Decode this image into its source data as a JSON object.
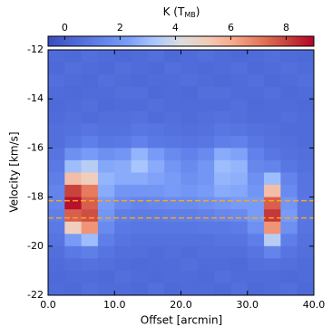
{
  "chart_data": {
    "type": "heatmap",
    "colormap": "coolwarm",
    "colorbar_label": {
      "text": "K (T",
      "sub": "MB",
      "end": ")"
    },
    "clim": [
      -0.6,
      9.0
    ],
    "cticks": [
      0,
      2,
      4,
      6,
      8
    ],
    "x_label": "Offset [arcmin]",
    "y_label": "Velocity [km/s]",
    "xlim": [
      0,
      40
    ],
    "ylim": [
      -22,
      -12
    ],
    "xticks": [
      {
        "value": 0,
        "label": "0.0"
      },
      {
        "value": 10,
        "label": "10.0"
      },
      {
        "value": 20,
        "label": "20.0"
      },
      {
        "value": 30,
        "label": "30.0"
      },
      {
        "value": 40,
        "label": "40.0"
      }
    ],
    "yticks": [
      -12,
      -14,
      -16,
      -18,
      -20,
      -22
    ],
    "x": [
      1.25,
      3.75,
      6.25,
      8.75,
      11.25,
      13.75,
      16.25,
      18.75,
      21.25,
      23.75,
      26.25,
      28.75,
      31.25,
      33.75,
      36.25,
      38.75
    ],
    "y": [
      -12.25,
      -12.75,
      -13.25,
      -13.75,
      -14.25,
      -14.75,
      -15.25,
      -15.75,
      -16.25,
      -16.75,
      -17.25,
      -17.75,
      -18.25,
      -18.75,
      -19.25,
      -19.75,
      -20.25,
      -20.75,
      -21.25,
      -21.75
    ],
    "values": [
      [
        0.5,
        0.4,
        0.6,
        0.5,
        0.4,
        0.5,
        0.6,
        0.4,
        0.5,
        0.6,
        0.5,
        0.4,
        0.5,
        0.6,
        0.5,
        0.4
      ],
      [
        0.4,
        0.6,
        0.5,
        0.4,
        0.6,
        0.5,
        0.4,
        0.6,
        0.5,
        0.4,
        0.5,
        0.6,
        0.4,
        0.5,
        0.6,
        0.5
      ],
      [
        0.6,
        0.5,
        0.4,
        0.6,
        0.5,
        0.4,
        0.5,
        0.5,
        0.6,
        0.5,
        0.4,
        0.5,
        0.6,
        0.4,
        0.5,
        0.6
      ],
      [
        0.5,
        0.4,
        0.5,
        0.5,
        0.6,
        0.6,
        0.4,
        0.5,
        0.4,
        0.6,
        0.6,
        0.5,
        0.5,
        0.6,
        0.4,
        0.5
      ],
      [
        0.4,
        0.5,
        0.6,
        0.4,
        0.5,
        0.5,
        0.6,
        0.5,
        0.5,
        0.5,
        0.5,
        0.6,
        0.4,
        0.5,
        0.5,
        0.4
      ],
      [
        0.5,
        0.6,
        0.5,
        0.6,
        0.6,
        0.7,
        0.5,
        0.6,
        0.5,
        0.6,
        0.7,
        0.6,
        0.5,
        0.5,
        0.6,
        0.5
      ],
      [
        0.6,
        0.7,
        0.8,
        0.7,
        0.7,
        0.9,
        0.8,
        0.7,
        0.6,
        0.7,
        0.9,
        0.8,
        0.7,
        0.6,
        0.5,
        0.5
      ],
      [
        0.6,
        0.9,
        1.2,
        0.9,
        1.0,
        1.3,
        1.0,
        0.9,
        0.8,
        0.9,
        1.2,
        1.3,
        0.9,
        0.7,
        0.6,
        0.5
      ],
      [
        0.8,
        1.8,
        2.2,
        1.8,
        2.0,
        2.8,
        2.2,
        1.6,
        1.3,
        1.6,
        2.6,
        2.4,
        1.3,
        0.9,
        0.7,
        0.6
      ],
      [
        1.0,
        3.0,
        3.5,
        2.5,
        2.6,
        3.2,
        2.6,
        2.0,
        1.6,
        2.0,
        3.0,
        2.8,
        1.5,
        1.4,
        0.9,
        0.7
      ],
      [
        1.2,
        5.5,
        5.0,
        2.8,
        2.6,
        2.6,
        2.4,
        2.2,
        1.8,
        2.0,
        2.8,
        2.7,
        1.8,
        3.0,
        1.4,
        0.8
      ],
      [
        1.4,
        8.0,
        7.0,
        2.6,
        2.0,
        2.0,
        2.0,
        2.2,
        2.0,
        2.2,
        2.6,
        2.5,
        2.0,
        5.5,
        1.6,
        0.8
      ],
      [
        1.4,
        8.8,
        7.5,
        2.2,
        1.6,
        1.4,
        1.5,
        1.6,
        1.6,
        1.8,
        2.0,
        2.2,
        2.2,
        7.5,
        2.0,
        0.9
      ],
      [
        1.2,
        7.5,
        7.8,
        2.0,
        1.2,
        1.1,
        1.1,
        1.2,
        1.2,
        1.3,
        1.5,
        1.6,
        2.2,
        8.2,
        2.2,
        0.9
      ],
      [
        1.0,
        5.0,
        6.5,
        1.6,
        1.0,
        0.9,
        0.9,
        0.9,
        0.9,
        1.0,
        1.0,
        1.1,
        1.8,
        6.5,
        1.8,
        0.8
      ],
      [
        0.8,
        2.2,
        3.0,
        1.2,
        0.8,
        0.7,
        0.7,
        0.7,
        0.7,
        0.7,
        0.8,
        0.8,
        1.2,
        3.5,
        1.2,
        0.7
      ],
      [
        0.6,
        1.0,
        1.2,
        0.8,
        0.6,
        0.6,
        0.5,
        0.6,
        0.5,
        0.6,
        0.6,
        0.6,
        0.8,
        1.4,
        0.8,
        0.6
      ],
      [
        0.5,
        0.6,
        0.7,
        0.6,
        0.5,
        0.4,
        0.5,
        0.5,
        0.6,
        0.5,
        0.5,
        0.4,
        0.6,
        0.7,
        0.6,
        0.5
      ],
      [
        0.4,
        0.5,
        0.5,
        0.4,
        0.6,
        0.5,
        0.4,
        0.5,
        0.5,
        0.4,
        0.6,
        0.5,
        0.5,
        0.5,
        0.4,
        0.5
      ],
      [
        0.5,
        0.4,
        0.6,
        0.5,
        0.5,
        0.4,
        0.6,
        0.4,
        0.5,
        0.5,
        0.4,
        0.6,
        0.4,
        0.5,
        0.6,
        0.4
      ]
    ],
    "hlines": {
      "values": [
        -18.15,
        -18.85
      ],
      "color": "#f5a623",
      "style": "dashed"
    }
  }
}
